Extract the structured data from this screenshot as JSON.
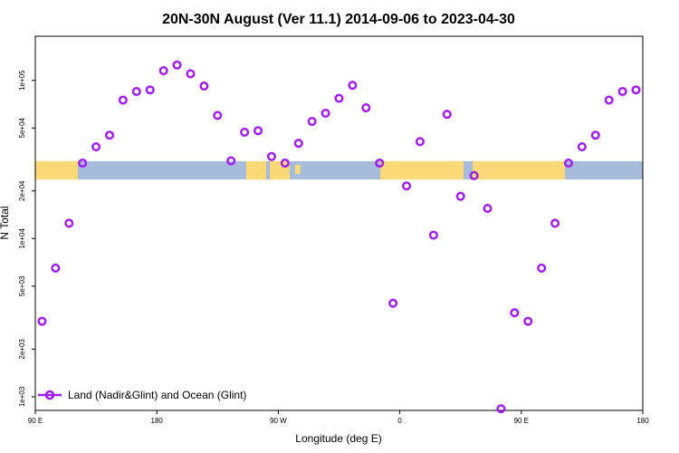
{
  "chart_data": {
    "type": "scatter",
    "title": "20N-30N August (Ver 11.1)   2014-09-06 to 2023-04-30",
    "xlabel": "Longitude (deg E)",
    "ylabel": "N Total",
    "y_scale": "log",
    "xlim": [
      90,
      540
    ],
    "ylim": [
      820,
      190000
    ],
    "x_ticks": [
      {
        "value": 90,
        "label": "90 E"
      },
      {
        "value": 180,
        "label": "180"
      },
      {
        "value": 270,
        "label": "90 W"
      },
      {
        "value": 360,
        "label": "0"
      },
      {
        "value": 450,
        "label": "90 E"
      },
      {
        "value": 540,
        "label": "180"
      }
    ],
    "y_ticks": [
      {
        "value": 1000,
        "label": "1e+03"
      },
      {
        "value": 2000,
        "label": "2e+03"
      },
      {
        "value": 5000,
        "label": "5e+03"
      },
      {
        "value": 10000,
        "label": "1e+04"
      },
      {
        "value": 20000,
        "label": "2e+04"
      },
      {
        "value": 50000,
        "label": "5e+04"
      },
      {
        "value": 100000,
        "label": "1e+05"
      }
    ],
    "grid": false,
    "legend_position": "bottom-left",
    "series": [
      {
        "name": "Land (Nadir&Glint) and Ocean (Glint)",
        "color": "#a020f0",
        "x": [
          95,
          105,
          115,
          125,
          135,
          145,
          155,
          165,
          175,
          185,
          195,
          205,
          215,
          225,
          235,
          245,
          255,
          265,
          275,
          285,
          295,
          305,
          315,
          325,
          335,
          345,
          355,
          365,
          375,
          385,
          395,
          405,
          415,
          425,
          435,
          445,
          455,
          465,
          475,
          485,
          495,
          505,
          515,
          525,
          535
        ],
        "y": [
          3000,
          6500,
          12500,
          30000,
          38000,
          45000,
          75000,
          85000,
          87000,
          115000,
          125000,
          110000,
          92000,
          60000,
          31000,
          47000,
          48000,
          33000,
          30000,
          40000,
          55000,
          62000,
          77000,
          93000,
          67000,
          30000,
          3900,
          21500,
          41000,
          10500,
          61000,
          18500,
          25000,
          15500,
          840,
          3400,
          3000,
          6500,
          12500,
          30000,
          38000,
          45000,
          75000,
          85000,
          87000
        ]
      }
    ]
  }
}
